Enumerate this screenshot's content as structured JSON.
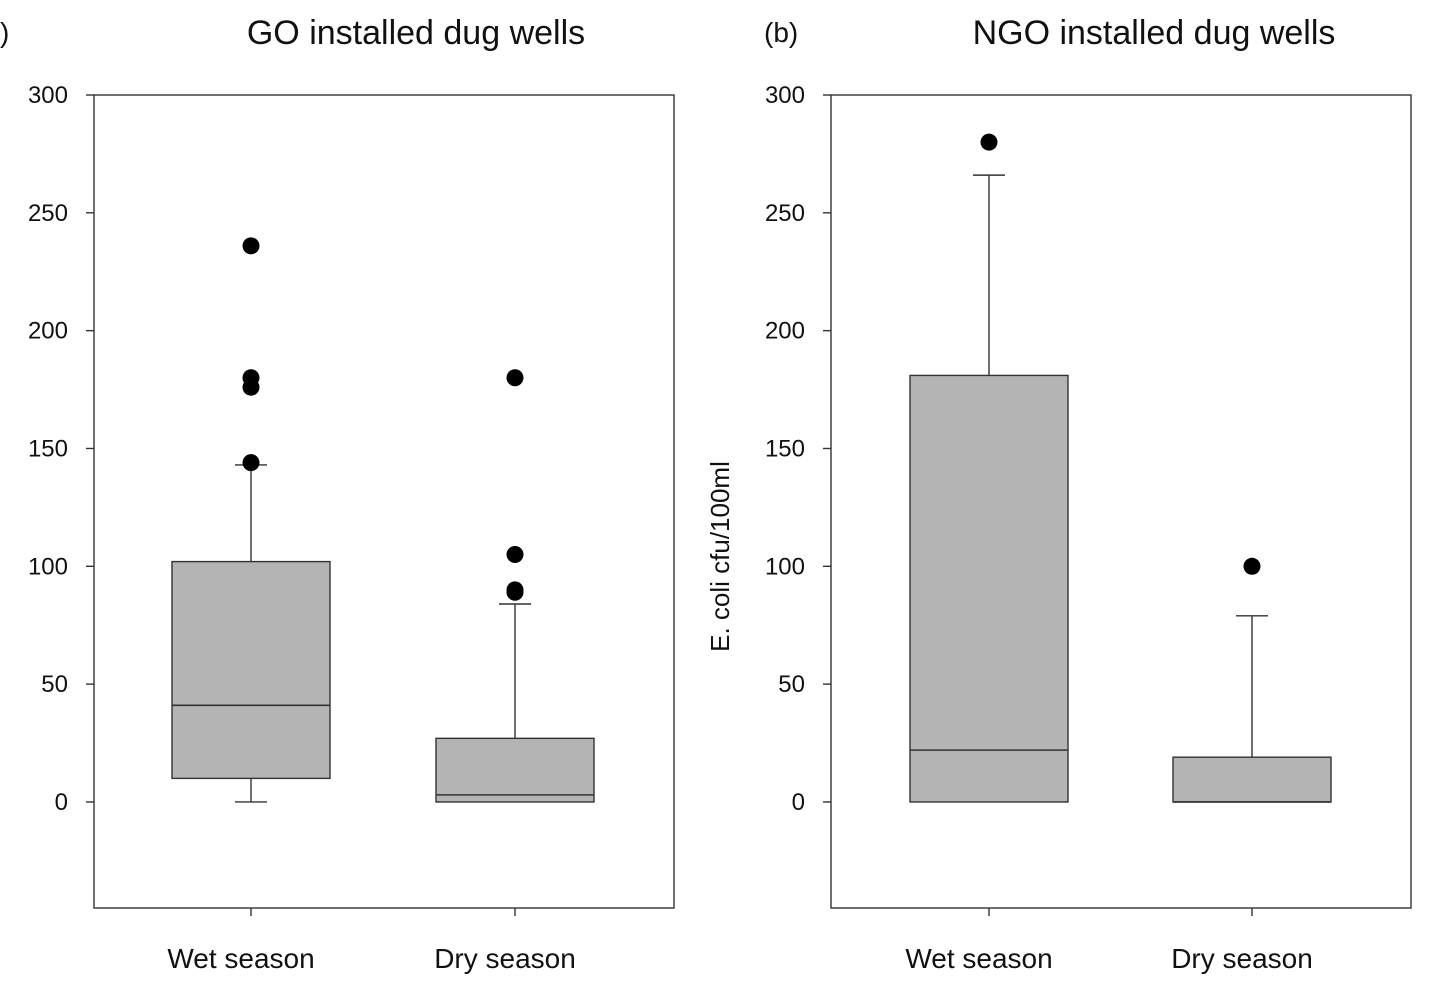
{
  "chart_data": [
    {
      "type": "box",
      "panel_label": ")",
      "title": "GO installed dug wells",
      "ylabel": "",
      "ylim": [
        -45,
        300
      ],
      "yticks": [
        0,
        50,
        100,
        150,
        200,
        250,
        300
      ],
      "categories": [
        "Wet season",
        "Dry season"
      ],
      "boxes": [
        {
          "whisker_low": 0,
          "q1": 10,
          "median": 41,
          "q3": 102,
          "whisker_high": 143,
          "outliers": [
            236,
            180,
            176,
            144
          ]
        },
        {
          "whisker_low": 0,
          "q1": 0,
          "median": 3,
          "q3": 27,
          "whisker_high": 84,
          "outliers": [
            180,
            105,
            90,
            89
          ]
        }
      ],
      "box_color": "#b4b4b4"
    },
    {
      "type": "box",
      "panel_label": "(b)",
      "title": "NGO installed dug wells",
      "ylabel": "E. coli cfu/100ml",
      "ylim": [
        -45,
        300
      ],
      "yticks": [
        0,
        50,
        100,
        150,
        200,
        250,
        300
      ],
      "categories": [
        "Wet season",
        "Dry season"
      ],
      "boxes": [
        {
          "whisker_low": 0,
          "q1": 0,
          "median": 22,
          "q3": 181,
          "whisker_high": 266,
          "outliers": [
            280
          ]
        },
        {
          "whisker_low": 0,
          "q1": 0,
          "median": 0,
          "q3": 19,
          "whisker_high": 79,
          "outliers": [
            100
          ]
        }
      ],
      "box_color": "#b4b4b4"
    }
  ]
}
